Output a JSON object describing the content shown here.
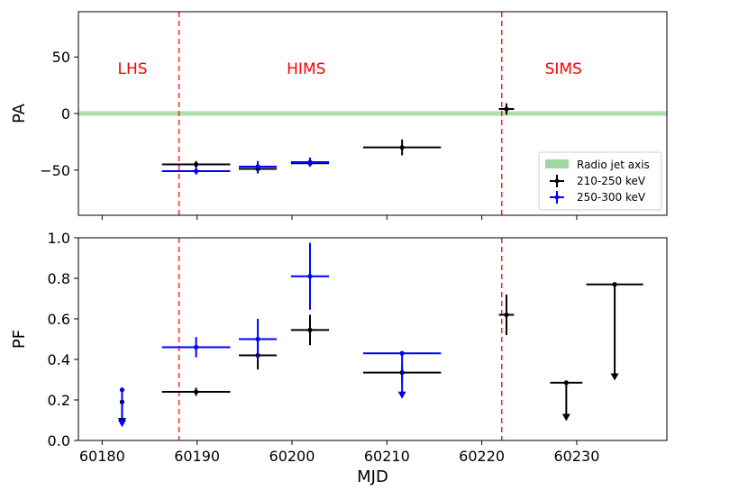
{
  "chart_data": [
    {
      "type": "scatter",
      "panel": "top",
      "xlabel": "",
      "ylabel": "PA",
      "xlim": [
        60177.5,
        60239.5
      ],
      "ylim": [
        -90,
        90
      ],
      "yticks": [
        -50,
        0,
        50
      ],
      "band": {
        "label": "Radio jet axis",
        "ymin": -2,
        "ymax": 2,
        "color": "#9fd89f"
      },
      "state_lines": [
        60188.1,
        60222.1
      ],
      "state_labels": [
        {
          "text": "LHS",
          "x": 60183.2,
          "y": 40
        },
        {
          "text": "HIMS",
          "x": 60201.5,
          "y": 40
        },
        {
          "text": "SIMS",
          "x": 60228.6,
          "y": 40
        }
      ],
      "legend_position": "lower right",
      "series": [
        {
          "name": "210-250 keV",
          "color": "#000000",
          "points": [
            {
              "x": 60189.9,
              "xerr": 3.6,
              "y": -45,
              "yerr": 3,
              "upper_limit": false
            },
            {
              "x": 60196.4,
              "xerr": 2.0,
              "y": -49,
              "yerr": 4,
              "upper_limit": false
            },
            {
              "x": 60201.9,
              "xerr": 2.0,
              "y": -44,
              "yerr": 3,
              "upper_limit": false
            },
            {
              "x": 60211.6,
              "xerr": 4.1,
              "y": -30,
              "yerr": 7,
              "upper_limit": false
            },
            {
              "x": 60222.6,
              "xerr": 0.8,
              "y": 4,
              "yerr": 5,
              "upper_limit": false
            }
          ]
        },
        {
          "name": "250-300 keV",
          "color": "#0000ff",
          "points": [
            {
              "x": 60189.9,
              "xerr": 3.6,
              "y": -51,
              "yerr": 3,
              "upper_limit": false
            },
            {
              "x": 60196.4,
              "xerr": 2.0,
              "y": -47,
              "yerr": 5,
              "upper_limit": false
            },
            {
              "x": 60201.9,
              "xerr": 2.0,
              "y": -43,
              "yerr": 4,
              "upper_limit": false
            }
          ]
        }
      ]
    },
    {
      "type": "scatter",
      "panel": "bottom",
      "xlabel": "MJD",
      "ylabel": "PF",
      "xlim": [
        60177.5,
        60239.5
      ],
      "ylim": [
        0.0,
        1.0
      ],
      "xticks": [
        60180,
        60190,
        60200,
        60210,
        60220,
        60230
      ],
      "yticks": [
        0.0,
        0.2,
        0.4,
        0.6,
        0.8,
        1.0
      ],
      "state_lines": [
        60188.1,
        60222.1
      ],
      "series": [
        {
          "name": "210-250 keV",
          "color": "#000000",
          "points": [
            {
              "x": 60182.1,
              "xerr": 0,
              "y": 0.19,
              "yerr": 0,
              "upper_limit": true,
              "limit_to": 0.08
            },
            {
              "x": 60189.9,
              "xerr": 3.6,
              "y": 0.24,
              "yerr": 0.02,
              "upper_limit": false
            },
            {
              "x": 60196.4,
              "xerr": 2.0,
              "y": 0.42,
              "yerr": 0.07,
              "upper_limit": false
            },
            {
              "x": 60201.9,
              "xerr": 2.0,
              "y": 0.545,
              "yerr": 0.075,
              "upper_limit": false
            },
            {
              "x": 60211.6,
              "xerr": 4.1,
              "y": 0.335,
              "yerr": 0.04,
              "upper_limit": false
            },
            {
              "x": 60222.6,
              "xerr": 0.8,
              "y": 0.62,
              "yerr": 0.1,
              "upper_limit": false
            },
            {
              "x": 60228.9,
              "xerr": 1.7,
              "y": 0.285,
              "yerr": 0,
              "upper_limit": true,
              "limit_to": 0.1
            },
            {
              "x": 60234.0,
              "xerr": 3.0,
              "y": 0.77,
              "yerr": 0,
              "upper_limit": true,
              "limit_to": 0.3
            }
          ]
        },
        {
          "name": "250-300 keV",
          "color": "#0000ff",
          "points": [
            {
              "x": 60182.1,
              "xerr": 0,
              "y": 0.25,
              "yerr": 0,
              "upper_limit": true,
              "limit_to": 0.07
            },
            {
              "x": 60189.9,
              "xerr": 3.6,
              "y": 0.46,
              "yerr": 0.05,
              "upper_limit": false
            },
            {
              "x": 60196.4,
              "xerr": 2.0,
              "y": 0.5,
              "yerr": 0.1,
              "upper_limit": false
            },
            {
              "x": 60201.9,
              "xerr": 2.0,
              "y": 0.81,
              "yerr": 0.165,
              "upper_limit": false
            },
            {
              "x": 60211.6,
              "xerr": 4.1,
              "y": 0.43,
              "yerr": 0,
              "upper_limit": true,
              "limit_to": 0.21
            }
          ]
        }
      ]
    }
  ]
}
